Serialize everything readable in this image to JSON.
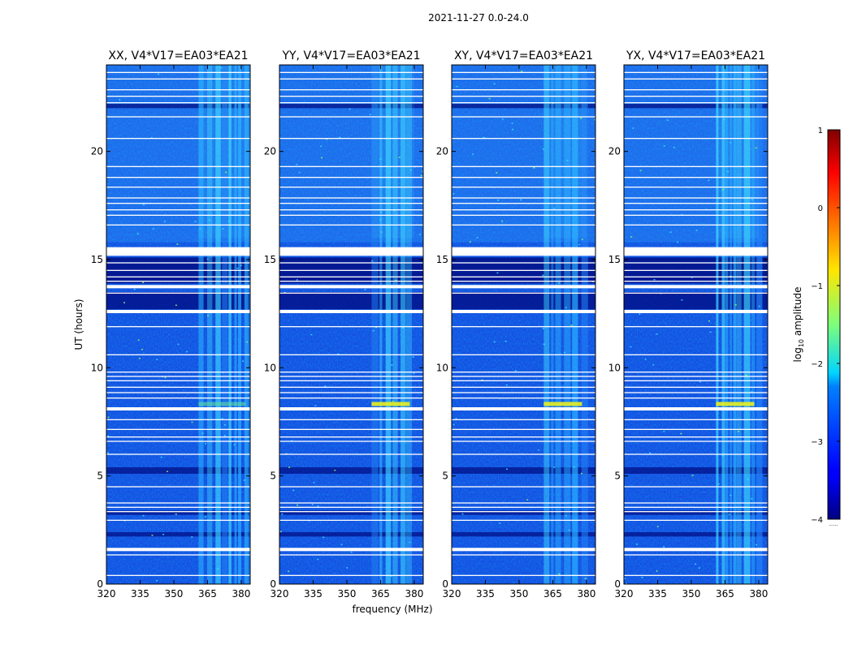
{
  "figure": {
    "suptitle": "2021-11-27 0.0-24.0",
    "xlabel": "frequency (MHz)",
    "ylabel": "UT (hours)",
    "colorbar_label_prefix": "log",
    "colorbar_label_sub": "10",
    "colorbar_label_suffix": " amplitude",
    "colorbar_footnote": "......"
  },
  "chart_data": {
    "type": "heatmap",
    "title": "2021-11-27 0.0-24.0",
    "xlabel": "frequency (MHz)",
    "ylabel": "UT (hours)",
    "xlim": [
      320,
      384
    ],
    "ylim": [
      0,
      24
    ],
    "xticks": [
      320,
      335,
      350,
      365,
      380
    ],
    "yticks": [
      0,
      5,
      10,
      15,
      20
    ],
    "colorbar": {
      "label": "log10 amplitude",
      "range": [
        -4,
        1
      ],
      "ticks": [
        1,
        0,
        -1,
        -2,
        -3,
        -4
      ],
      "tick_labels": [
        "1",
        "0",
        "−1",
        "−2",
        "−3",
        "−4"
      ],
      "colormap": "jet"
    },
    "panels": [
      {
        "title": "XX, V4*V17=EA03*EA21",
        "bright_band_mhz": [
          361,
          384
        ],
        "flare_hour": 8.3
      },
      {
        "title": "YY, V4*V17=EA03*EA21",
        "bright_band_mhz": [
          361,
          380
        ],
        "flare_hour": 8.3
      },
      {
        "title": "XY, V4*V17=EA03*EA21",
        "bright_band_mhz": [
          361,
          380
        ],
        "flare_hour": 8.3
      },
      {
        "title": "YX, V4*V17=EA03*EA21",
        "bright_band_mhz": [
          361,
          380
        ],
        "flare_hour": 8.3
      }
    ],
    "flagged_hours": [
      0.4,
      1.35,
      1.6,
      2.95,
      3.35,
      3.55,
      3.75,
      4.5,
      6.0,
      6.6,
      6.8,
      7.15,
      7.6,
      8.1,
      8.6,
      8.85,
      9.1,
      9.4,
      9.6,
      9.8,
      10.6,
      11.9,
      12.6,
      13.45,
      13.75,
      14.0,
      14.2,
      14.5,
      14.85,
      15.5,
      16.6,
      17.05,
      17.3,
      17.6,
      17.85,
      18.35,
      18.8,
      19.3,
      20.6,
      21.6,
      22.25,
      22.55,
      22.85,
      23.35,
      23.65
    ],
    "dark_rows": [
      {
        "from": 13.9,
        "to": 15.1,
        "level": 0.2
      },
      {
        "from": 12.7,
        "to": 13.5,
        "level": 0.25
      },
      {
        "from": 5.1,
        "to": 5.4,
        "level": 0.3
      },
      {
        "from": 3.2,
        "to": 3.4,
        "level": 0.3
      },
      {
        "from": 2.2,
        "to": 2.4,
        "level": 0.3
      },
      {
        "from": 22.0,
        "to": 22.2,
        "level": 0.3
      }
    ]
  }
}
